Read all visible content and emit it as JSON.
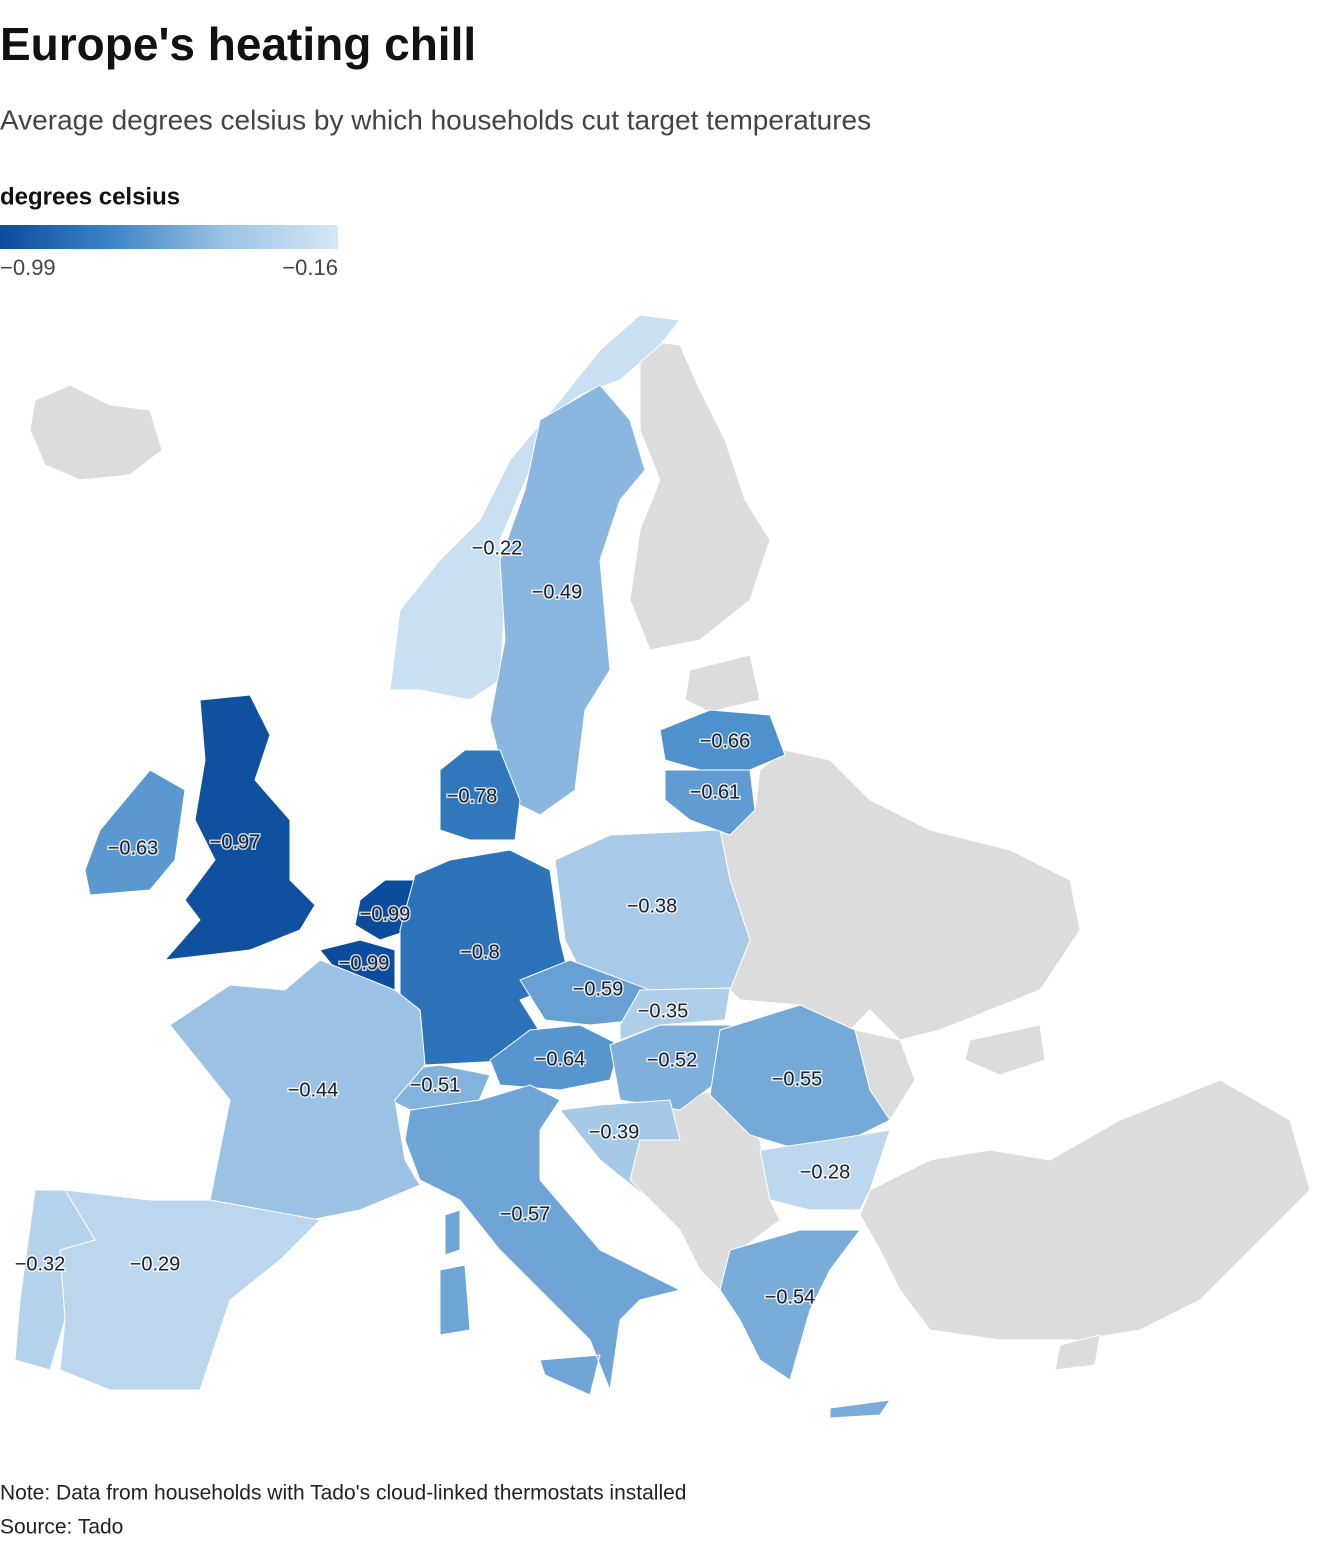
{
  "header": {
    "title": "Europe's heating chill",
    "subtitle": "Average degrees celsius by which households cut target temperatures"
  },
  "legend": {
    "title": "degrees celsius",
    "min": {
      "value": -0.99,
      "label": "−0.99"
    },
    "max": {
      "value": -0.16,
      "label": "−0.16"
    },
    "colors": [
      "#0b4c9c",
      "#3d85c6",
      "#9cc3e5",
      "#d6e7f5"
    ]
  },
  "regions": [
    {
      "value": -0.22,
      "label": "−0.22"
    },
    {
      "value": -0.49,
      "label": "−0.49"
    },
    {
      "value": -0.78,
      "label": "−0.78"
    },
    {
      "value": -0.97,
      "label": "−0.97"
    },
    {
      "value": -0.63,
      "label": "−0.63"
    },
    {
      "value": -0.99,
      "label": "−0.99"
    },
    {
      "value": -0.99,
      "label": "−0.99"
    },
    {
      "value": -0.8,
      "label": "−0.8"
    },
    {
      "value": -0.38,
      "label": "−0.38"
    },
    {
      "value": -0.59,
      "label": "−0.59"
    },
    {
      "value": -0.35,
      "label": "−0.35"
    },
    {
      "value": -0.64,
      "label": "−0.64"
    },
    {
      "value": -0.52,
      "label": "−0.52"
    },
    {
      "value": -0.55,
      "label": "−0.55"
    },
    {
      "value": -0.28,
      "label": "−0.28"
    },
    {
      "value": -0.54,
      "label": "−0.54"
    },
    {
      "value": -0.39,
      "label": "−0.39"
    },
    {
      "value": -0.51,
      "label": "−0.51"
    },
    {
      "value": -0.44,
      "label": "−0.44"
    },
    {
      "value": -0.57,
      "label": "−0.57"
    },
    {
      "value": -0.29,
      "label": "−0.29"
    },
    {
      "value": -0.32,
      "label": "−0.32"
    },
    {
      "value": -0.66,
      "label": "−0.66"
    },
    {
      "value": -0.61,
      "label": "−0.61"
    }
  ],
  "footer": {
    "note": "Note: Data from households with Tado's cloud-linked thermostats installed",
    "source": "Source: Tado"
  }
}
